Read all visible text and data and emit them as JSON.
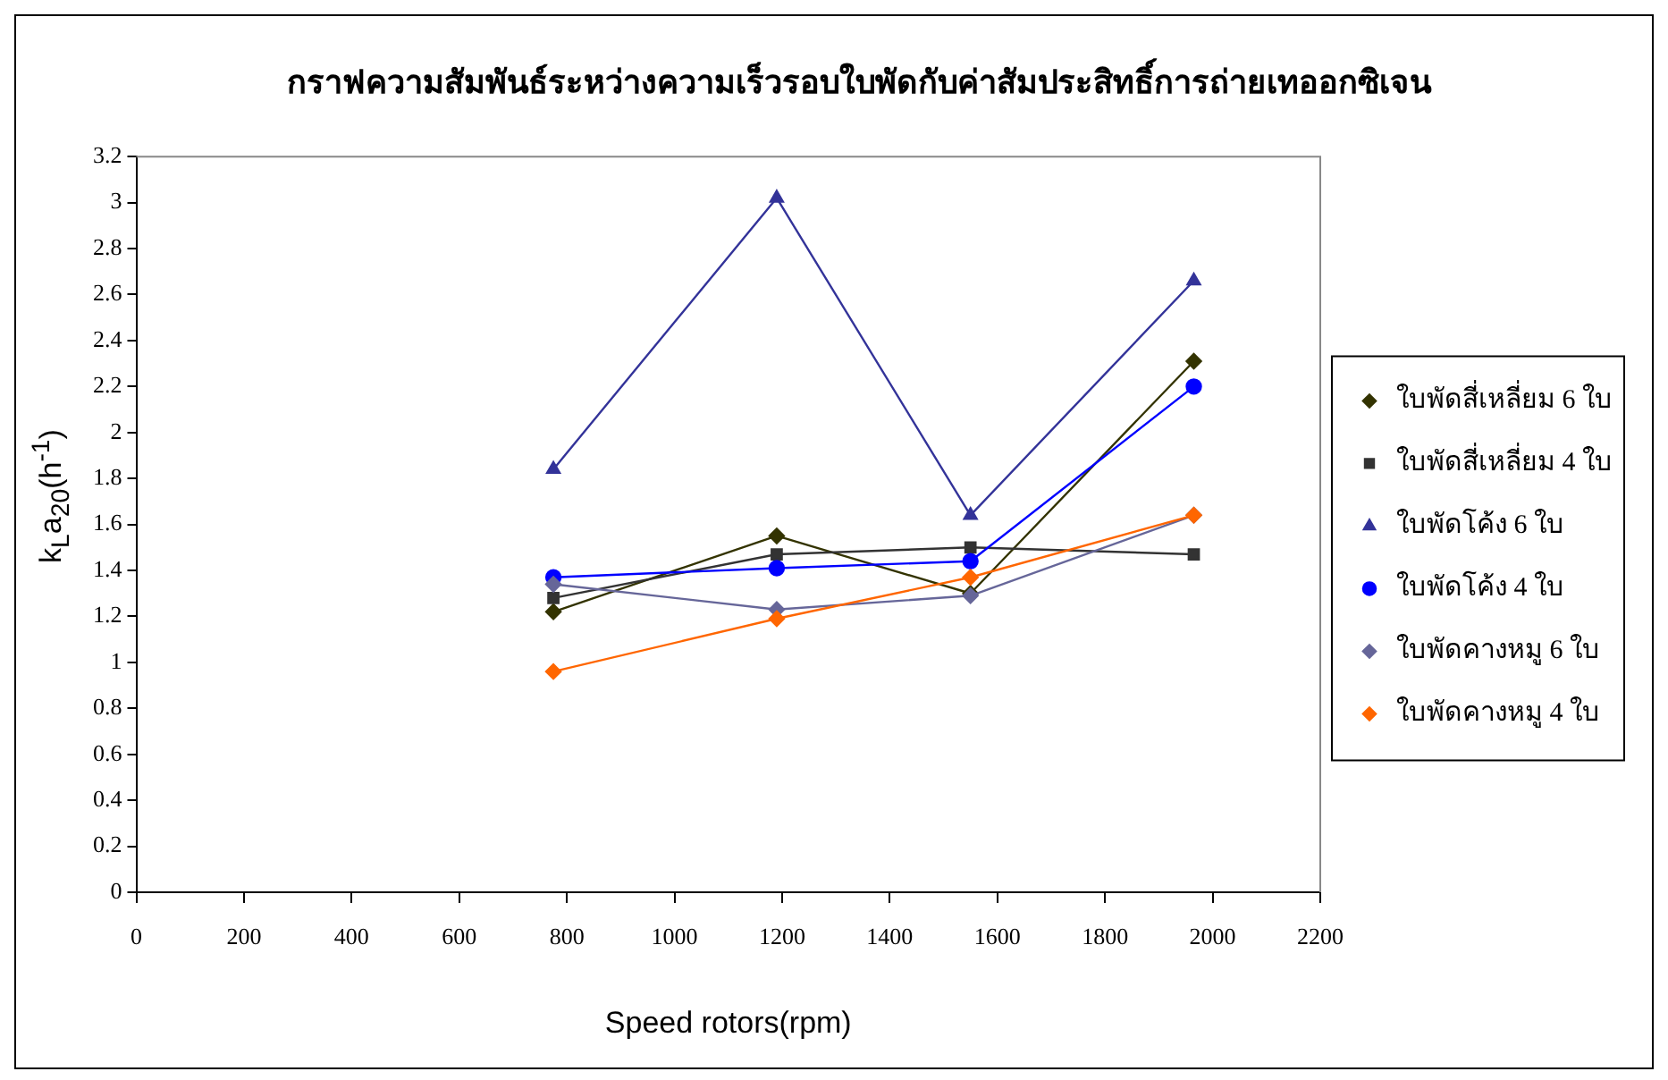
{
  "chart_data": {
    "type": "line",
    "title": "กราฟความสัมพันธ์ระหว่างความเร็วรอบใบพัดกับค่าสัมประสิทธิ์การถ่ายเทออกซิเจน",
    "xlabel": "Speed rotors(rpm)",
    "ylabel": "k$_{L}$a$_{20}$(h$^{-1}$)",
    "x": [
      775,
      1190,
      1550,
      1965
    ],
    "xlim": [
      0,
      2200
    ],
    "xticks": [
      0,
      200,
      400,
      600,
      800,
      1000,
      1200,
      1400,
      1600,
      1800,
      2000,
      2200
    ],
    "ylim": [
      0,
      3.2
    ],
    "yticks": [
      0,
      0.2,
      0.4,
      0.6,
      0.8,
      1,
      1.2,
      1.4,
      1.6,
      1.8,
      2,
      2.2,
      2.4,
      2.6,
      2.8,
      3,
      3.2
    ],
    "grid": false,
    "legend": "right",
    "series": [
      {
        "name": "ใบพัดสี่เหลี่ยม 6 ใบ",
        "color": "#333300",
        "marker": "diamond",
        "values": [
          1.22,
          1.55,
          1.3,
          2.31
        ]
      },
      {
        "name": "ใบพัดสี่เหลี่ยม 4 ใบ",
        "color": "#333333",
        "marker": "square",
        "values": [
          1.28,
          1.47,
          1.5,
          1.47
        ]
      },
      {
        "name": "ใบพัดโค้ง 6 ใบ",
        "color": "#333399",
        "marker": "triangle",
        "values": [
          1.84,
          3.02,
          1.64,
          2.66
        ]
      },
      {
        "name": "ใบพัดโค้ง 4 ใบ",
        "color": "#0000ff",
        "marker": "circle",
        "values": [
          1.37,
          1.41,
          1.44,
          2.2
        ]
      },
      {
        "name": "ใบพัดคางหมู 6 ใบ",
        "color": "#666699",
        "marker": "diamond",
        "values": [
          1.34,
          1.23,
          1.29,
          1.64
        ]
      },
      {
        "name": "ใบพัดคางหมู 4 ใบ",
        "color": "#ff6600",
        "marker": "diamond",
        "values": [
          0.96,
          1.19,
          1.37,
          1.64
        ]
      }
    ]
  }
}
